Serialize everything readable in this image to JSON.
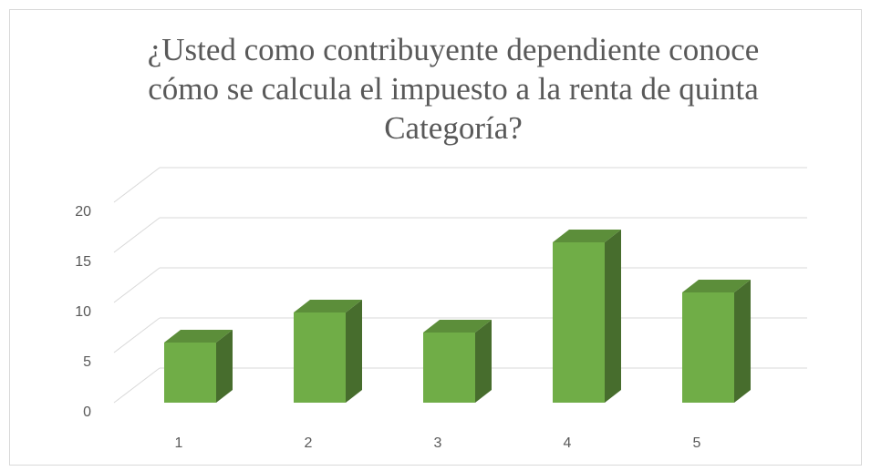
{
  "chart_data": {
    "type": "bar3d",
    "title_lines": [
      "¿Usted  como contribuyente  dependiente conoce",
      "cómo  se calcula el impuesto a la renta  de quinta",
      "Categoría?"
    ],
    "categories": [
      "1",
      "2",
      "3",
      "4",
      "5"
    ],
    "values": [
      6,
      9,
      7,
      16,
      11
    ],
    "color": "#70ad47",
    "ylim": [
      0,
      20
    ],
    "yticks": [
      0,
      5,
      10,
      15,
      20
    ],
    "grid": true
  }
}
